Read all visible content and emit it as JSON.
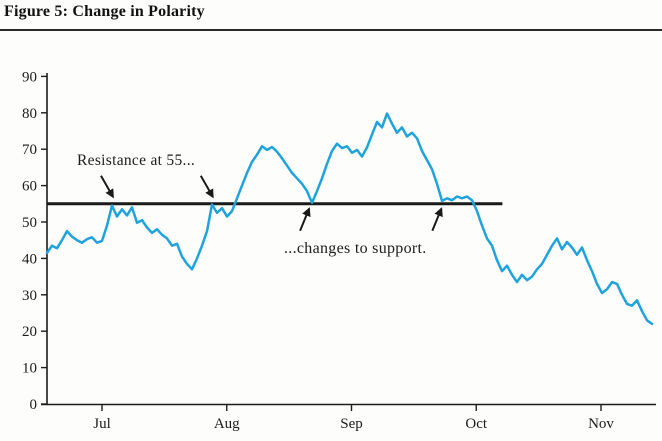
{
  "figure": {
    "title": "Figure 5: Change in Polarity"
  },
  "chart_data": {
    "type": "line",
    "title": "Figure 5: Change in Polarity",
    "xlabel": "",
    "ylabel": "",
    "x_tick_labels": [
      "Jul",
      "Aug",
      "Sep",
      "Oct",
      "Nov"
    ],
    "y_ticks": [
      0,
      10,
      20,
      30,
      40,
      50,
      60,
      70,
      80,
      90
    ],
    "ylim": [
      0,
      90
    ],
    "x_range_months": [
      -0.44,
      4.41
    ],
    "x_units": "months, Jul = 0, evenly spaced daily samples",
    "grid": false,
    "legend": false,
    "series": [
      {
        "name": "price",
        "color": "#1fa3dc",
        "values": [
          41.5,
          43.5,
          42.8,
          45,
          47.5,
          46,
          45,
          44.3,
          45.3,
          45.8,
          44.3,
          44.8,
          49,
          54.5,
          51.5,
          53.5,
          51.8,
          54,
          49.8,
          50.5,
          48.5,
          47,
          48,
          46.5,
          45.5,
          43.5,
          44,
          40.5,
          38.5,
          37,
          40,
          43.5,
          47.5,
          54.8,
          52.5,
          53.8,
          51.5,
          53,
          56.5,
          60,
          63.5,
          66.5,
          68.5,
          70.8,
          69.8,
          70.6,
          69.3,
          67.5,
          65.5,
          63.5,
          62,
          60.5,
          58.5,
          55.3,
          58.5,
          62,
          66,
          69.5,
          71.5,
          70.3,
          70.8,
          69,
          69.8,
          68,
          70.5,
          74,
          77.5,
          76,
          79.8,
          77,
          74.5,
          76,
          73.5,
          74.5,
          73,
          69.5,
          67,
          64.5,
          60.5,
          55.8,
          56.5,
          56,
          57,
          56.5,
          57,
          56,
          53,
          49,
          45.5,
          43.5,
          39.5,
          36.5,
          38,
          35.5,
          33.5,
          35.5,
          34,
          35,
          37,
          38.5,
          41,
          43.5,
          45.5,
          42.5,
          44.5,
          43,
          41,
          43,
          39.5,
          36.5,
          33,
          30.5,
          31.5,
          33.5,
          33,
          30,
          27.5,
          27,
          28.5,
          25.5,
          23,
          22
        ]
      }
    ],
    "reference_line": {
      "value": 55,
      "color": "#1a1a1a",
      "x_from_months": -0.44,
      "x_to_months": 3.21
    },
    "annotations": [
      {
        "text": "Resistance at 55...",
        "target_value": 55,
        "arrow_direction": "down",
        "arrow_targets_months": [
          0.08,
          0.88
        ]
      },
      {
        "text": "...changes to support.",
        "target_value": 55,
        "arrow_direction": "up",
        "arrow_targets_months": [
          1.66,
          2.72
        ]
      }
    ]
  }
}
